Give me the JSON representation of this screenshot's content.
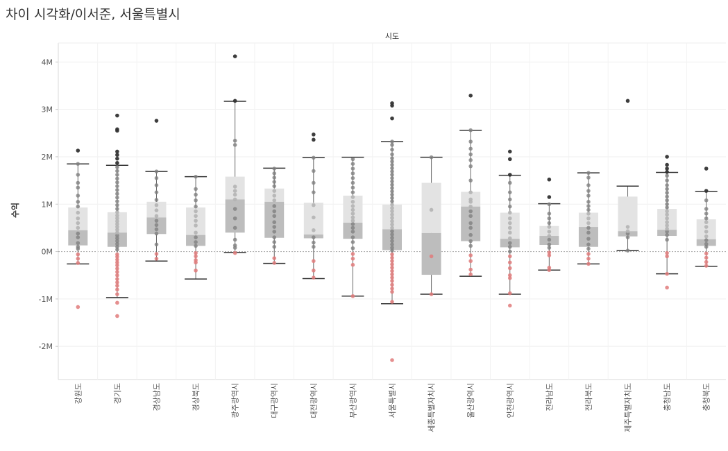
{
  "title": "차이 시각화/이서준, 서울특별시",
  "chart_data": {
    "type": "boxplot",
    "column_header": "시도",
    "ylabel": "수익",
    "ylim": [
      -2700000,
      4400000
    ],
    "yticks": [
      {
        "value": -2000000,
        "label": "-2M"
      },
      {
        "value": -1000000,
        "label": "-1M"
      },
      {
        "value": 0,
        "label": "0M"
      },
      {
        "value": 1000000,
        "label": "1M"
      },
      {
        "value": 2000000,
        "label": "2M"
      },
      {
        "value": 3000000,
        "label": "3M"
      },
      {
        "value": 4000000,
        "label": "4M"
      }
    ],
    "categories": [
      "강원도",
      "경기도",
      "경상남도",
      "경상북도",
      "광주광역시",
      "대구광역시",
      "대전광역시",
      "부산광역시",
      "서울특별시",
      "세종특별자치시",
      "울산광역시",
      "인천광역시",
      "전라남도",
      "전라북도",
      "제주특별자치도",
      "충청남도",
      "충청북도"
    ],
    "boxes": [
      {
        "category": "강원도",
        "whisker_low": -260000,
        "q1": 130000,
        "median": 450000,
        "q3": 930000,
        "whisker_high": 1850000
      },
      {
        "category": "경기도",
        "whisker_low": -970000,
        "q1": 100000,
        "median": 400000,
        "q3": 830000,
        "whisker_high": 1820000
      },
      {
        "category": "경상남도",
        "whisker_low": -200000,
        "q1": 370000,
        "median": 720000,
        "q3": 1050000,
        "whisker_high": 1690000
      },
      {
        "category": "경상북도",
        "whisker_low": -580000,
        "q1": 120000,
        "median": 350000,
        "q3": 930000,
        "whisker_high": 1580000
      },
      {
        "category": "광주광역시",
        "whisker_low": -20000,
        "q1": 400000,
        "median": 1100000,
        "q3": 1580000,
        "whisker_high": 3170000
      },
      {
        "category": "대구광역시",
        "whisker_low": -250000,
        "q1": 290000,
        "median": 1050000,
        "q3": 1330000,
        "whisker_high": 1760000
      },
      {
        "category": "대전광역시",
        "whisker_low": -570000,
        "q1": 280000,
        "median": 360000,
        "q3": 1030000,
        "whisker_high": 1980000
      },
      {
        "category": "부산광역시",
        "whisker_low": -940000,
        "q1": 270000,
        "median": 610000,
        "q3": 1180000,
        "whisker_high": 1990000
      },
      {
        "category": "서울특별시",
        "whisker_low": -1100000,
        "q1": 30000,
        "median": 470000,
        "q3": 990000,
        "whisker_high": 2320000
      },
      {
        "category": "세종특별자치시",
        "whisker_low": -900000,
        "q1": -490000,
        "median": 390000,
        "q3": 1450000,
        "whisker_high": 1990000
      },
      {
        "category": "울산광역시",
        "whisker_low": -520000,
        "q1": 220000,
        "median": 950000,
        "q3": 1260000,
        "whisker_high": 2560000
      },
      {
        "category": "인천광역시",
        "whisker_low": -900000,
        "q1": 90000,
        "median": 270000,
        "q3": 820000,
        "whisker_high": 1610000
      },
      {
        "category": "전라남도",
        "whisker_low": -390000,
        "q1": 140000,
        "median": 330000,
        "q3": 540000,
        "whisker_high": 1010000
      },
      {
        "category": "전라북도",
        "whisker_low": -260000,
        "q1": 100000,
        "median": 520000,
        "q3": 820000,
        "whisker_high": 1660000
      },
      {
        "category": "제주특별자치도",
        "whisker_low": 20000,
        "q1": 320000,
        "median": 430000,
        "q3": 1160000,
        "whisker_high": 1380000
      },
      {
        "category": "충청남도",
        "whisker_low": -470000,
        "q1": 330000,
        "median": 460000,
        "q3": 900000,
        "whisker_high": 1670000
      },
      {
        "category": "충청북도",
        "whisker_low": -310000,
        "q1": 120000,
        "median": 260000,
        "q3": 680000,
        "whisker_high": 1270000
      }
    ],
    "points": {
      "강원도": [
        -1170000,
        -240000,
        -150000,
        -60000,
        60000,
        100000,
        180000,
        300000,
        380000,
        500000,
        600000,
        700000,
        820000,
        950000,
        1050000,
        1180000,
        1350000,
        1450000,
        1620000,
        1850000,
        2130000
      ],
      "경기도": [
        -1360000,
        -1080000,
        -900000,
        -800000,
        -720000,
        -650000,
        -580000,
        -500000,
        -430000,
        -360000,
        -290000,
        -230000,
        -170000,
        -110000,
        -60000,
        40000,
        100000,
        160000,
        220000,
        280000,
        340000,
        400000,
        460000,
        520000,
        580000,
        640000,
        700000,
        760000,
        830000,
        900000,
        980000,
        1060000,
        1140000,
        1220000,
        1300000,
        1380000,
        1460000,
        1540000,
        1620000,
        1700000,
        1780000,
        1870000,
        1960000,
        2040000,
        2110000,
        2550000,
        2580000,
        2870000
      ],
      "경상남도": [
        -150000,
        -50000,
        150000,
        380000,
        470000,
        560000,
        650000,
        750000,
        870000,
        980000,
        1090000,
        1250000,
        1400000,
        1550000,
        1690000,
        2760000
      ],
      "경상북도": [
        -400000,
        -230000,
        -180000,
        -100000,
        -30000,
        120000,
        200000,
        300000,
        400000,
        550000,
        650000,
        750000,
        850000,
        950000,
        1080000,
        1200000,
        1320000,
        1580000
      ],
      "광주광역시": [
        -30000,
        80000,
        130000,
        250000,
        500000,
        700000,
        900000,
        1100000,
        1200000,
        1280000,
        1370000,
        2250000,
        2340000,
        3180000,
        4120000
      ],
      "대구광역시": [
        -240000,
        -140000,
        100000,
        200000,
        300000,
        420000,
        520000,
        620000,
        750000,
        850000,
        960000,
        1080000,
        1180000,
        1280000,
        1380000,
        1470000,
        1560000,
        1650000,
        1750000
      ],
      "대전광역시": [
        -550000,
        -400000,
        -200000,
        100000,
        190000,
        300000,
        450000,
        720000,
        980000,
        1250000,
        1450000,
        1700000,
        1980000,
        2360000,
        2470000
      ],
      "부산광역시": [
        -940000,
        -280000,
        -150000,
        -50000,
        70000,
        200000,
        300000,
        420000,
        500000,
        580000,
        650000,
        720000,
        800000,
        880000,
        960000,
        1050000,
        1150000,
        1250000,
        1350000,
        1450000,
        1550000,
        1650000,
        1750000,
        1850000,
        1950000
      ],
      "서울특별시": [
        -2290000,
        -1060000,
        -850000,
        -780000,
        -700000,
        -620000,
        -550000,
        -480000,
        -410000,
        -340000,
        -270000,
        -200000,
        -130000,
        -60000,
        20000,
        80000,
        150000,
        220000,
        290000,
        360000,
        430000,
        500000,
        570000,
        640000,
        710000,
        780000,
        850000,
        920000,
        990000,
        1060000,
        1130000,
        1200000,
        1270000,
        1340000,
        1410000,
        1480000,
        1550000,
        1620000,
        1690000,
        1760000,
        1830000,
        1900000,
        1970000,
        2050000,
        2150000,
        2250000,
        2320000,
        2810000,
        3080000,
        3130000
      ],
      "세종특별자치시": [
        -900000,
        -100000,
        880000,
        1990000
      ],
      "울산광역시": [
        -480000,
        -380000,
        -200000,
        -80000,
        120000,
        220000,
        350000,
        500000,
        600000,
        750000,
        850000,
        950000,
        1050000,
        1100000,
        1250000,
        1500000,
        1800000,
        1930000,
        2050000,
        2170000,
        2320000,
        2560000,
        3290000
      ],
      "인천광역시": [
        -1140000,
        -880000,
        -560000,
        -500000,
        -350000,
        -230000,
        -100000,
        0,
        100000,
        180000,
        280000,
        400000,
        500000,
        600000,
        700000,
        820000,
        950000,
        1100000,
        1250000,
        1450000,
        1620000,
        1950000,
        2110000
      ],
      "전라남도": [
        -390000,
        -340000,
        -80000,
        -20000,
        80000,
        150000,
        250000,
        330000,
        420000,
        520000,
        600000,
        700000,
        800000,
        1000000,
        1150000,
        1520000
      ],
      "전라북도": [
        -260000,
        -150000,
        -50000,
        60000,
        150000,
        270000,
        400000,
        500000,
        600000,
        700000,
        800000,
        880000,
        960000,
        1050000,
        1180000,
        1280000,
        1400000,
        1560000,
        1660000
      ],
      "제주특별자치도": [
        20000,
        300000,
        380000,
        430000,
        520000,
        3180000
      ],
      "충청남도": [
        -760000,
        -470000,
        -100000,
        -30000,
        250000,
        350000,
        420000,
        480000,
        550000,
        620000,
        700000,
        780000,
        850000,
        930000,
        1000000,
        1080000,
        1160000,
        1240000,
        1320000,
        1400000,
        1500000,
        1600000,
        1680000,
        1750000,
        1830000,
        2000000
      ],
      "충청북도": [
        -300000,
        -220000,
        -130000,
        -40000,
        100000,
        160000,
        240000,
        320000,
        420000,
        520000,
        620000,
        700000,
        800000,
        900000,
        1080000,
        1280000,
        1750000
      ]
    }
  }
}
